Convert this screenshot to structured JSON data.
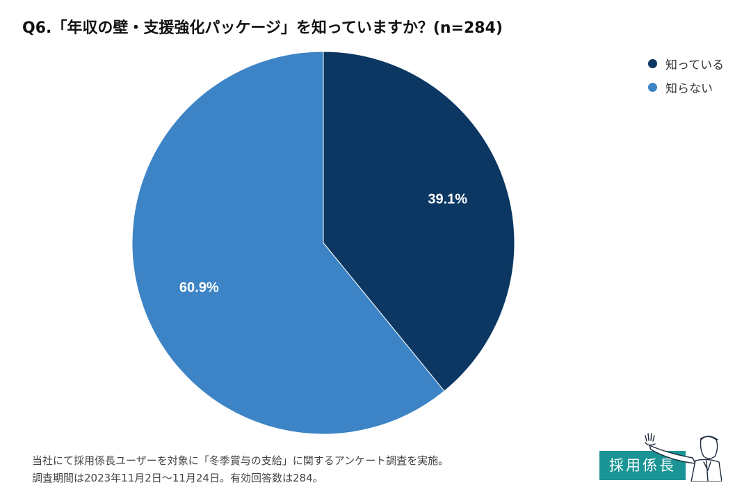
{
  "chart_data": {
    "type": "pie",
    "title": "Q6.「年収の壁・支援強化パッケージ」を知っていますか？(n=284)",
    "slices": [
      {
        "label": "知っている",
        "value": 39.1,
        "value_label": "39.1%",
        "color": "#0b3762"
      },
      {
        "label": "知らない",
        "value": 60.9,
        "value_label": "60.9%",
        "color": "#3d84c6"
      }
    ],
    "start": "12 o'clock",
    "direction": "clockwise",
    "legend_position": "top-right"
  },
  "footnote": {
    "line1": "当社にて採用係長ユーザーを対象に「冬季賞与の支給」に関するアンケート調査を実施。",
    "line2": "調査期間は2023年11月2日〜11月24日。有効回答数は284。"
  },
  "logo": {
    "text": "採用係長",
    "color": "#1a9494"
  }
}
